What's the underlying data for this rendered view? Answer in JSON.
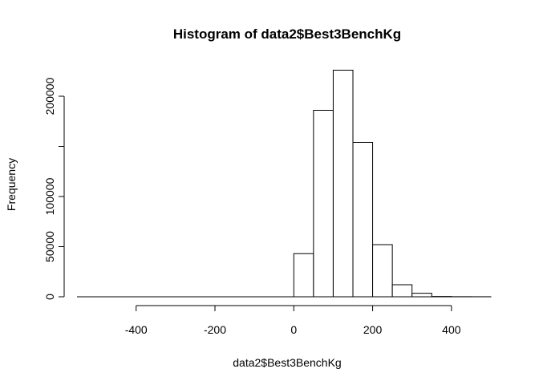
{
  "chart_data": {
    "type": "bar",
    "title": "Histogram of data2$Best3BenchKg",
    "xlabel": "data2$Best3BenchKg",
    "ylabel": "Frequency",
    "xlim": [
      -550,
      500
    ],
    "ylim": [
      0,
      230000
    ],
    "x_ticks": [
      -400,
      -200,
      0,
      200,
      400
    ],
    "x_tick_labels": [
      "-400",
      "-200",
      "0",
      "200",
      "400"
    ],
    "y_ticks": [
      0,
      50000,
      100000,
      200000
    ],
    "y_tick_labels": [
      "0",
      "50000",
      "100000",
      "200000"
    ],
    "bins": [
      {
        "start": -550,
        "end": -500,
        "count": 0
      },
      {
        "start": -500,
        "end": -450,
        "count": 0
      },
      {
        "start": -450,
        "end": -400,
        "count": 0
      },
      {
        "start": -400,
        "end": -350,
        "count": 0
      },
      {
        "start": -350,
        "end": -300,
        "count": 0
      },
      {
        "start": -300,
        "end": -250,
        "count": 0
      },
      {
        "start": -250,
        "end": -200,
        "count": 0
      },
      {
        "start": -200,
        "end": -150,
        "count": 0
      },
      {
        "start": -150,
        "end": -100,
        "count": 0
      },
      {
        "start": -100,
        "end": -50,
        "count": 0
      },
      {
        "start": -50,
        "end": 0,
        "count": 0
      },
      {
        "start": 0,
        "end": 50,
        "count": 43000
      },
      {
        "start": 50,
        "end": 100,
        "count": 186000
      },
      {
        "start": 100,
        "end": 150,
        "count": 226000
      },
      {
        "start": 150,
        "end": 200,
        "count": 154000
      },
      {
        "start": 200,
        "end": 250,
        "count": 52000
      },
      {
        "start": 250,
        "end": 300,
        "count": 12000
      },
      {
        "start": 300,
        "end": 350,
        "count": 3500
      },
      {
        "start": 350,
        "end": 400,
        "count": 300
      },
      {
        "start": 400,
        "end": 450,
        "count": 100
      },
      {
        "start": 450,
        "end": 500,
        "count": 50
      }
    ],
    "grid": false,
    "legend": "none"
  }
}
